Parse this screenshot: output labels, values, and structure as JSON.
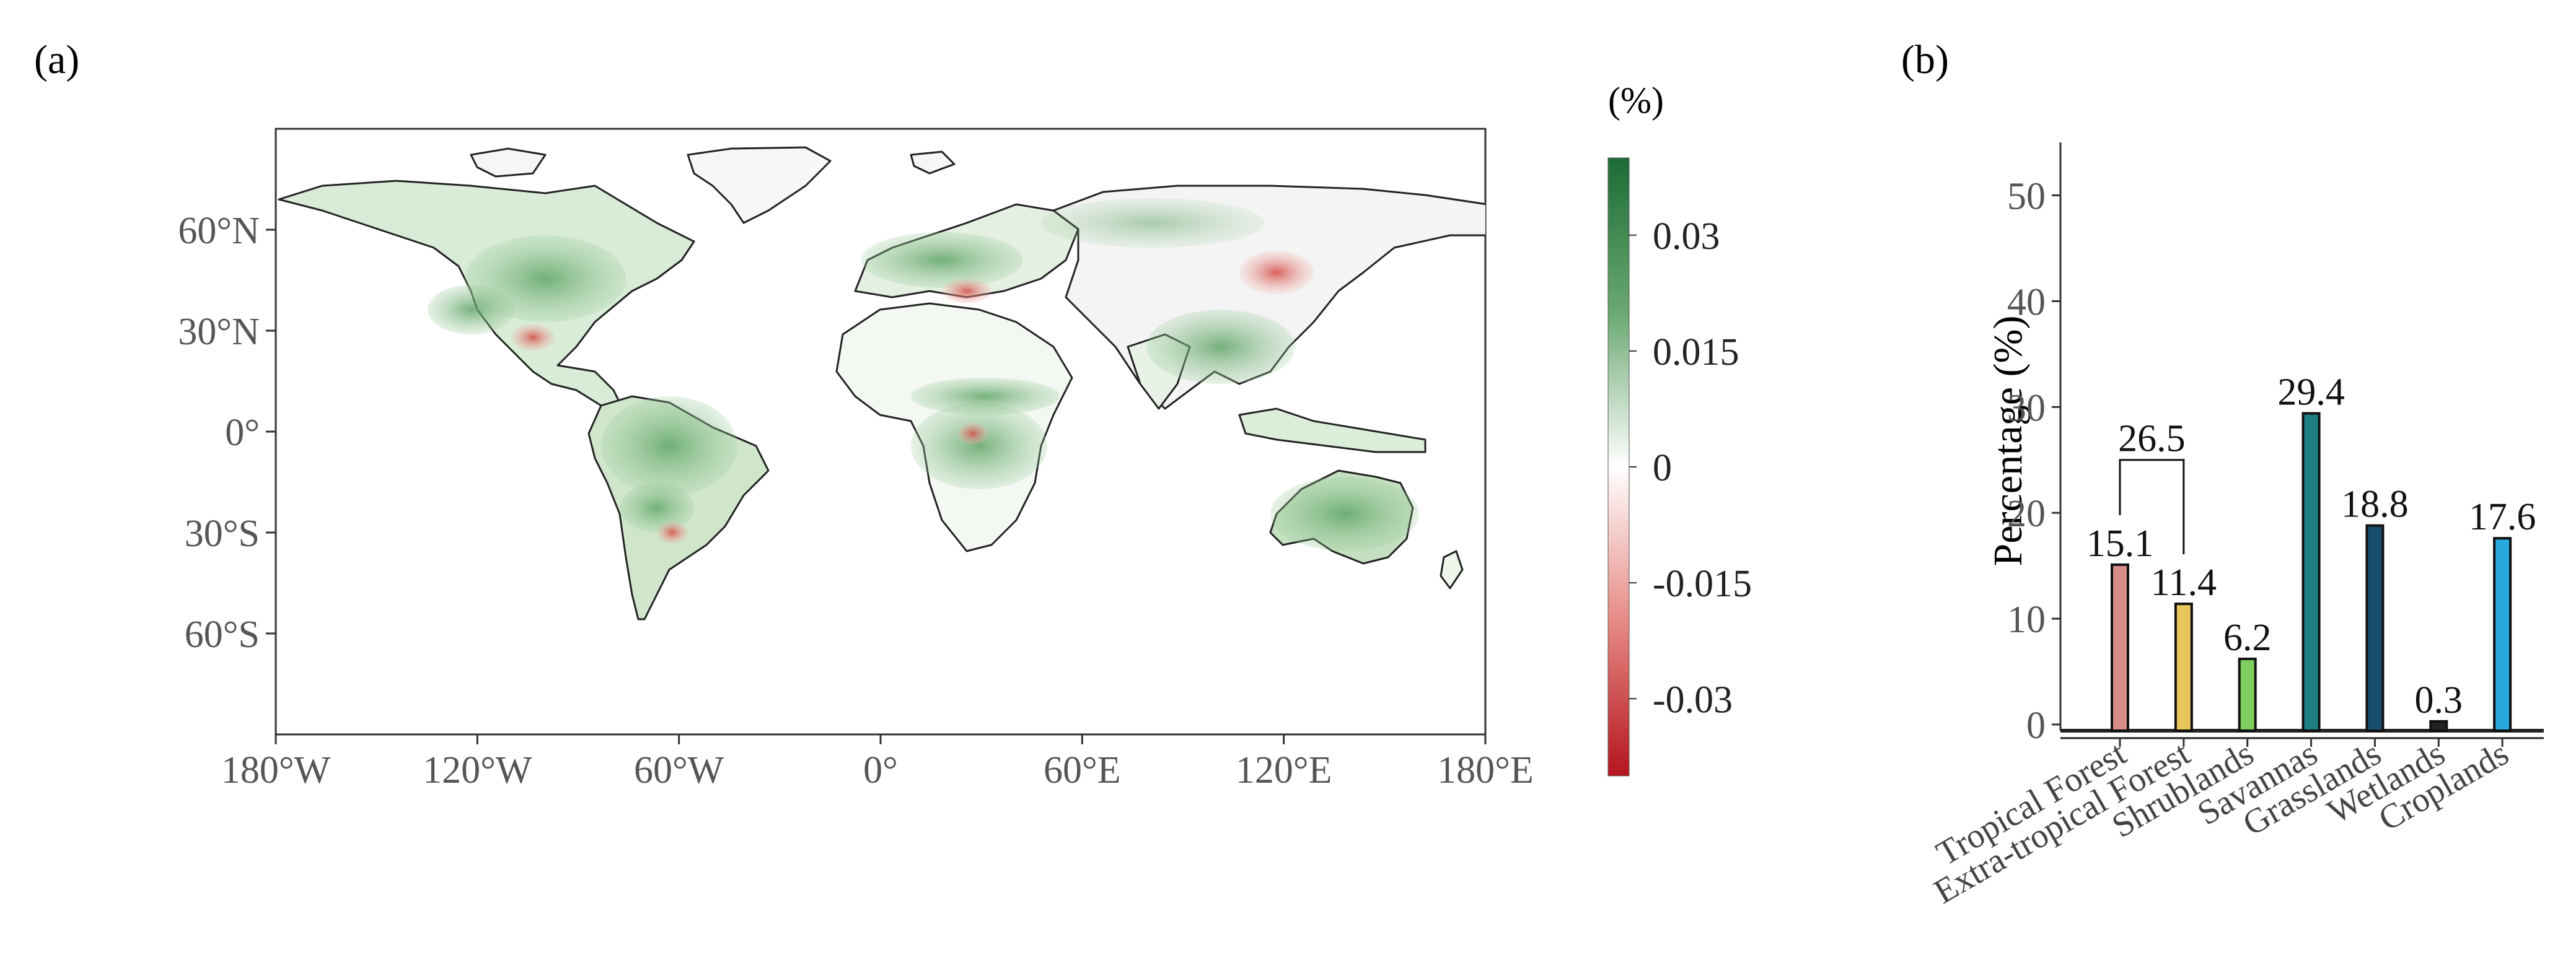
{
  "panel_a": {
    "label": "(a)",
    "colorbar": {
      "unit": "(%)",
      "ticks": [
        "0.03",
        "0.015",
        "0",
        "-0.015",
        "-0.03"
      ],
      "tick_values": [
        0.03,
        0.015,
        0,
        -0.015,
        -0.03
      ],
      "range": [
        -0.04,
        0.04
      ],
      "colors": {
        "high": "#1c6b35",
        "mid": "#ffffff",
        "low": "#b4151f"
      }
    },
    "lat_ticks": [
      "60°N",
      "30°N",
      "0°",
      "30°S",
      "60°S"
    ],
    "lat_values": [
      60,
      30,
      0,
      -30,
      -60
    ],
    "lon_ticks": [
      "180°W",
      "120°W",
      "60°W",
      "0°",
      "60°E",
      "120°E",
      "180°E"
    ],
    "lon_values": [
      -180,
      -120,
      -60,
      0,
      60,
      120,
      180
    ],
    "extent": {
      "lon": [
        -180,
        180
      ],
      "lat": [
        -90,
        90
      ]
    }
  },
  "panel_b": {
    "label": "(b)",
    "chart_data": {
      "type": "bar",
      "categories": [
        "Tropical  Forest",
        "Extra-tropical Forest",
        "Shrublands",
        "Savannas",
        "Grasslands",
        "Wetlands",
        "Croplands"
      ],
      "values": [
        15.1,
        11.4,
        6.2,
        29.4,
        18.8,
        0.3,
        17.6
      ],
      "value_labels": [
        "15.1",
        "11.4",
        "6.2",
        "29.4",
        "18.8",
        "0.3",
        "17.6"
      ],
      "colors": [
        "#d58f87",
        "#e7c65a",
        "#7dd05e",
        "#1d7f84",
        "#1a4e6e",
        "#222222",
        "#29a8de"
      ],
      "ylabel": "Percentage (%)",
      "ylim": [
        0,
        55
      ],
      "yticks": [
        0,
        10,
        20,
        30,
        40,
        50
      ],
      "ytick_labels": [
        "0",
        "10",
        "20",
        "30",
        "40",
        "50"
      ],
      "bracket": {
        "label": "26.5",
        "from": 0,
        "to": 1
      }
    }
  }
}
